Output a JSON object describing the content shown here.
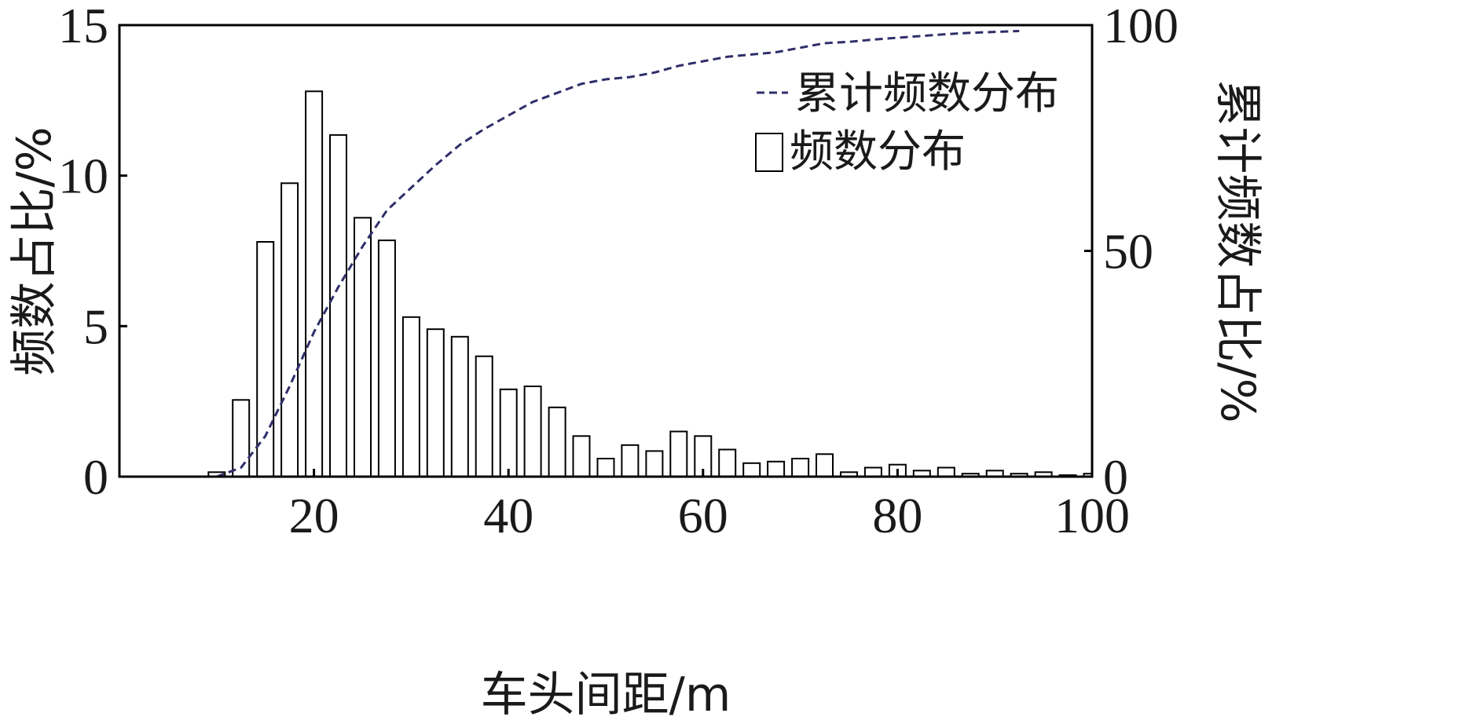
{
  "chart_data": {
    "type": "bar",
    "xlabel": "车头间距/m",
    "ylabel": "频数占比/%",
    "y2label": "累计频数占比/%",
    "xlim": [
      0,
      100
    ],
    "ylim": [
      0,
      15
    ],
    "y2lim": [
      0,
      100
    ],
    "x_ticks": [
      20,
      40,
      60,
      80,
      100
    ],
    "y_ticks": [
      0,
      5,
      10,
      15
    ],
    "y2_ticks": [
      0,
      50,
      100
    ],
    "legend_position": "top-right",
    "grid": false,
    "series": [
      {
        "name": "频数分布",
        "type": "bar",
        "axis": "left",
        "color": "#000000",
        "bin_width": 2.5,
        "x": [
          10,
          12.5,
          15,
          17.5,
          20,
          22.5,
          25,
          27.5,
          30,
          32.5,
          35,
          37.5,
          40,
          42.5,
          45,
          47.5,
          50,
          52.5,
          55,
          57.5,
          60,
          62.5,
          65,
          67.5,
          70,
          72.5,
          75,
          77.5,
          80,
          82.5,
          85,
          87.5,
          90,
          92.5,
          95,
          97.5,
          100
        ],
        "values": [
          0.15,
          2.55,
          7.8,
          9.75,
          12.8,
          11.35,
          8.6,
          7.85,
          5.3,
          4.9,
          4.65,
          4.0,
          2.9,
          3.0,
          2.3,
          1.35,
          0.6,
          1.05,
          0.85,
          1.5,
          1.35,
          0.9,
          0.45,
          0.5,
          0.6,
          0.75,
          0.15,
          0.3,
          0.4,
          0.2,
          0.3,
          0.1,
          0.2,
          0.1,
          0.15,
          0.05,
          0.1
        ]
      },
      {
        "name": "累计频数分布",
        "type": "line",
        "axis": "right",
        "style": "dashed",
        "color": "#2e2e6a",
        "x": [
          10,
          12.5,
          15,
          17.5,
          20,
          22.5,
          25,
          27.5,
          30,
          32.5,
          35,
          37.5,
          40,
          42.5,
          45,
          47.5,
          50,
          52.5,
          55,
          57.5,
          60,
          62.5,
          65,
          67.5,
          70,
          72.5,
          75,
          77.5,
          80,
          82.5,
          85,
          87.5,
          90,
          92.5
        ],
        "values": [
          0,
          2,
          9,
          20,
          32,
          42,
          51,
          59,
          64,
          69,
          73.5,
          77,
          80,
          83,
          85,
          87,
          88,
          88.5,
          89.5,
          91,
          92,
          93,
          93.5,
          94,
          95,
          96,
          96.3,
          96.8,
          97.2,
          97.6,
          98,
          98.3,
          98.5,
          98.7
        ]
      }
    ]
  }
}
